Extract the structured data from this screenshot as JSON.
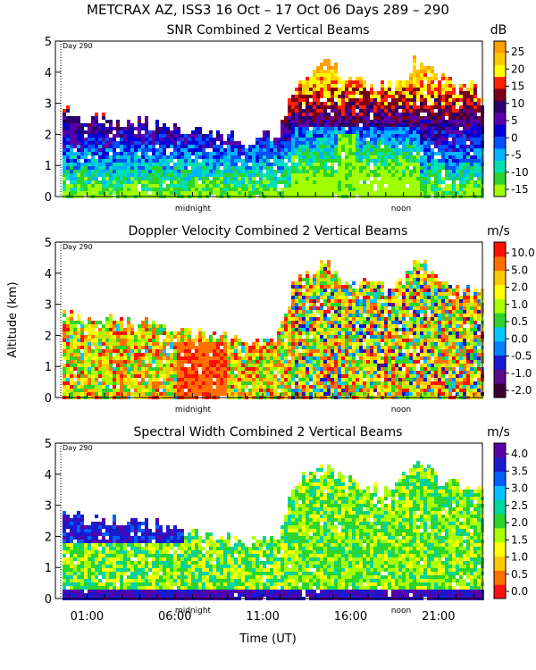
{
  "figure": {
    "title": "METCRAX AZ, ISS3  16 Oct – 17 Oct 06 Days 289 – 290",
    "ylabel": "Altitude (km)",
    "xlabel": "Time (UT)"
  },
  "chart_data": [
    {
      "type": "heatmap",
      "title": "SNR Combined 2 Vertical Beams",
      "unit": "dB",
      "day_marker": "Day 290",
      "midnight_label": "midnight",
      "noon_label": "noon",
      "ylim": [
        0,
        5
      ],
      "yticks": [
        "0",
        "1",
        "2",
        "3",
        "4",
        "5"
      ],
      "xlim_hours": [
        23.2,
        47.5
      ],
      "xticks": [],
      "colorbar_ticks": [
        "25",
        "20",
        "15",
        "10",
        "5",
        "0",
        "-5",
        "-10",
        "-15"
      ],
      "colors": [
        "#ff9f00",
        "#ffc800",
        "#ffff00",
        "#ff2000",
        "#7a001a",
        "#2b006b",
        "#5a00a8",
        "#0000d8",
        "#0050ff",
        "#00b4ff",
        "#00e0b0",
        "#2cd42c",
        "#a0ff00"
      ]
    },
    {
      "type": "heatmap",
      "title": "Doppler Velocity Combined 2 Vertical Beams",
      "unit": "m/s",
      "day_marker": "Day 290",
      "midnight_label": "midnight",
      "noon_label": "noon",
      "ylim": [
        0,
        5
      ],
      "yticks": [
        "0",
        "1",
        "2",
        "3",
        "4",
        "5"
      ],
      "xlim_hours": [
        23.2,
        47.5
      ],
      "xticks": [],
      "colorbar_ticks": [
        "10.0",
        "5.0",
        "2.0",
        "1.0",
        "0.5",
        "0.0",
        "-0.5",
        "-1.0",
        "-2.0"
      ],
      "colors": [
        "#3a0030",
        "#5a0a8a",
        "#1818d0",
        "#0080ff",
        "#00c8ff",
        "#2cd42c",
        "#a8ff00",
        "#ffff00",
        "#ffc800",
        "#ff7000",
        "#ff1000"
      ]
    },
    {
      "type": "heatmap",
      "title": "Spectral Width Combined 2 Vertical Beams",
      "unit": "m/s",
      "day_marker": "Day 290",
      "midnight_label": "midnight",
      "noon_label": "noon",
      "ylim": [
        0,
        5
      ],
      "yticks": [
        "0",
        "1",
        "2",
        "3",
        "4",
        "5"
      ],
      "xlim_hours": [
        23.2,
        47.5
      ],
      "xticks": [
        "01:00",
        "06:00",
        "11:00",
        "16:00",
        "21:00"
      ],
      "colorbar_ticks": [
        "4.0",
        "3.5",
        "3.0",
        "2.5",
        "2.0",
        "1.5",
        "1.0",
        "0.5",
        "0.0"
      ],
      "colors": [
        "#ff1010",
        "#ff7000",
        "#ffc800",
        "#ffff00",
        "#a8ff00",
        "#2cd42c",
        "#00d4a0",
        "#00c0ff",
        "#0060ff",
        "#1a1ad0",
        "#5a00a8"
      ]
    }
  ]
}
